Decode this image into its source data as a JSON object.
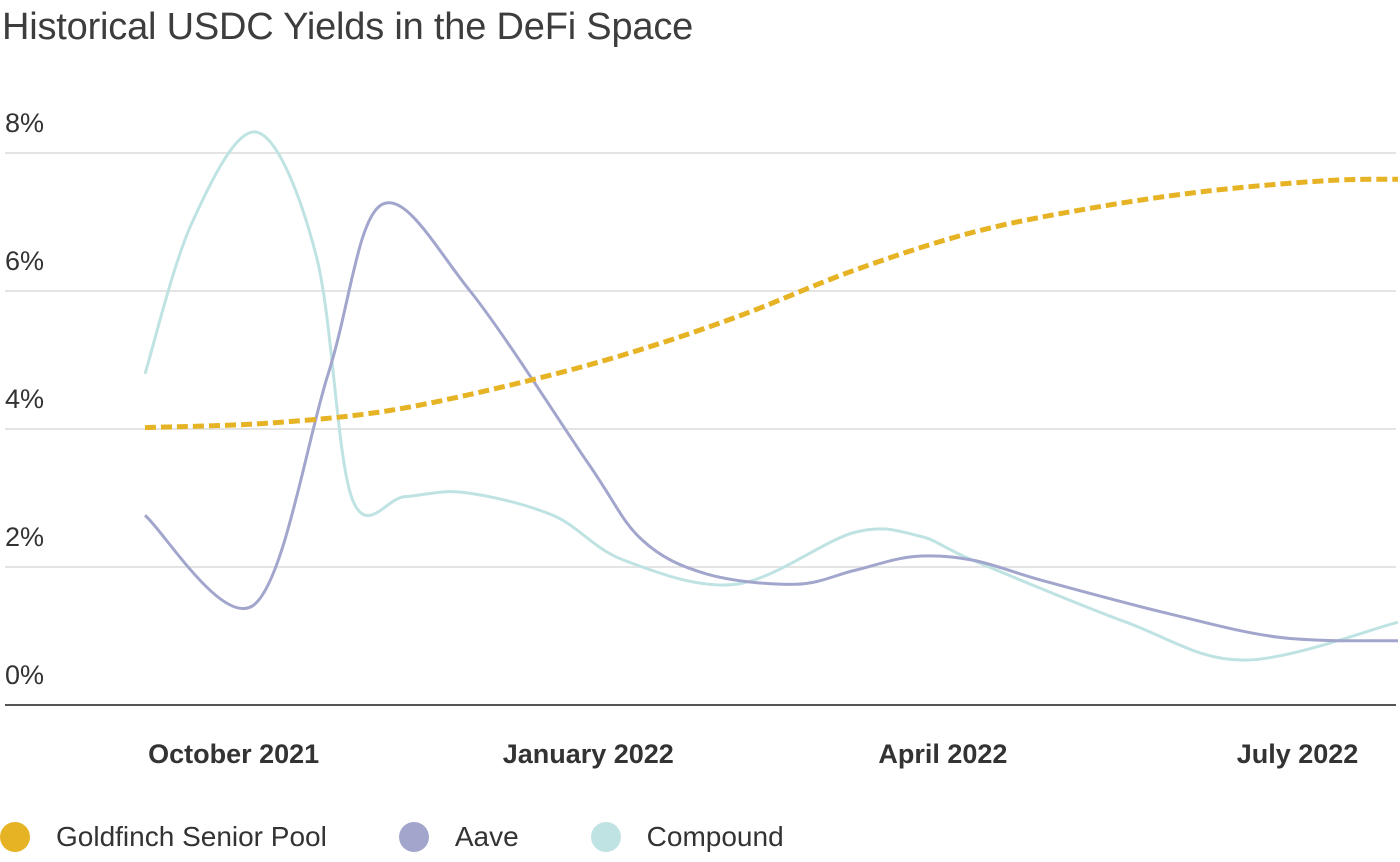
{
  "chart_data": {
    "type": "line",
    "title": "Historical USDC Yields in the DeFi Space",
    "xlabel": "",
    "ylabel": "",
    "ylim": [
      0,
      8
    ],
    "xlim": [
      0.0,
      10.6
    ],
    "y_ticks": [
      {
        "value": 0,
        "label": "0%"
      },
      {
        "value": 2,
        "label": "2%"
      },
      {
        "value": 4,
        "label": "4%"
      },
      {
        "value": 6,
        "label": "6%"
      },
      {
        "value": 8,
        "label": "8%"
      }
    ],
    "x_ticks": [
      {
        "value": 0.75,
        "label": "October 2021"
      },
      {
        "value": 3.75,
        "label": "January 2022"
      },
      {
        "value": 6.75,
        "label": "April 2022"
      },
      {
        "value": 9.75,
        "label": "July 2022"
      }
    ],
    "grid": true,
    "legend_position": "bottom-left",
    "series": [
      {
        "name": "Goldfinch Senior Pool",
        "color": "#E6B325",
        "dashed": true,
        "x": [
          0.0,
          1.0,
          2.0,
          3.0,
          4.0,
          5.0,
          6.0,
          7.0,
          8.0,
          9.0,
          10.0,
          10.6
        ],
        "y": [
          4.02,
          4.08,
          4.25,
          4.6,
          5.05,
          5.62,
          6.3,
          6.85,
          7.2,
          7.45,
          7.6,
          7.62
        ]
      },
      {
        "name": "Aave",
        "color": "#A3A6CC",
        "dashed": false,
        "x": [
          0.0,
          0.92,
          1.55,
          2.0,
          2.75,
          3.75,
          4.2,
          4.75,
          5.5,
          6.0,
          6.5,
          7.0,
          7.6,
          8.6,
          9.6,
          10.6
        ],
        "y": [
          2.75,
          1.45,
          4.8,
          7.25,
          6.0,
          3.5,
          2.4,
          1.9,
          1.75,
          1.95,
          2.15,
          2.1,
          1.8,
          1.35,
          0.98,
          0.93
        ]
      },
      {
        "name": "Compound",
        "color": "#BFE3E2",
        "dashed": false,
        "x": [
          0.0,
          0.4,
          0.95,
          1.45,
          1.75,
          2.2,
          2.7,
          3.45,
          4.05,
          5.0,
          6.0,
          6.55,
          7.0,
          8.3,
          9.3,
          10.6
        ],
        "y": [
          4.8,
          7.0,
          8.3,
          6.5,
          3.0,
          3.02,
          3.08,
          2.75,
          2.1,
          1.75,
          2.5,
          2.45,
          2.1,
          1.2,
          0.65,
          1.2
        ]
      }
    ]
  }
}
